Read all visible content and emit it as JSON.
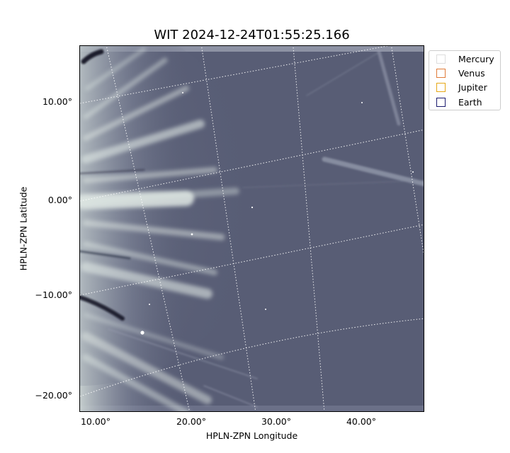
{
  "figure": {
    "title": "WIT 2024-12-24T01:55:25.166",
    "xlabel": "HPLN-ZPN Longitude",
    "ylabel": "HPLN-ZPN Latitude",
    "yticks": [
      "10.00°",
      "0.00°",
      "−10.00°",
      "−20.00°"
    ],
    "xticks": [
      "10.00°",
      "20.00°",
      "30.00°",
      "40.00°"
    ]
  },
  "legend": {
    "items": [
      {
        "label": "Mercury",
        "color": "#dddddd"
      },
      {
        "label": "Venus",
        "color": "#e07b39"
      },
      {
        "label": "Jupiter",
        "color": "#e6a817"
      },
      {
        "label": "Earth",
        "color": "#1a1a6e"
      }
    ]
  },
  "image": {
    "colormap": [
      "#0d0f1c",
      "#585d75",
      "#e8f0ec"
    ],
    "grid_style": "dotted"
  }
}
